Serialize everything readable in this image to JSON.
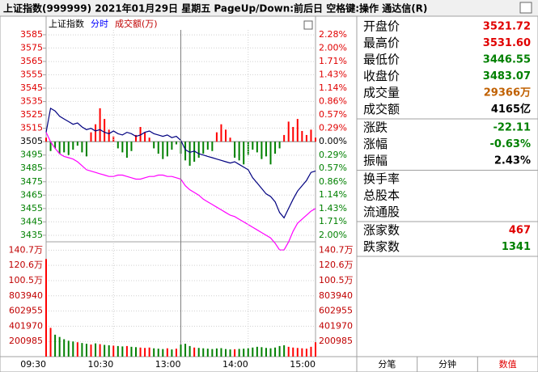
{
  "header": {
    "title": "上证指数(999999)  2021年01月29日 星期五 PageUp/Down:前后日 空格键:操作 通达信(R)"
  },
  "chart_data": [
    {
      "type": "line",
      "legend": [
        {
          "text": "上证指数",
          "color": "#000000"
        },
        {
          "text": "分时",
          "color": "#0000ff"
        },
        {
          "text": "成交额(万)",
          "color": "#c00000"
        }
      ],
      "xlim": [
        0,
        240
      ],
      "x": [
        0,
        4,
        8,
        12,
        16,
        20,
        24,
        28,
        32,
        36,
        40,
        44,
        48,
        52,
        56,
        60,
        64,
        68,
        72,
        76,
        80,
        84,
        88,
        92,
        96,
        100,
        104,
        108,
        112,
        116,
        120,
        124,
        128,
        132,
        136,
        140,
        144,
        148,
        152,
        156,
        160,
        164,
        168,
        172,
        176,
        180,
        184,
        188,
        192,
        196,
        200,
        204,
        208,
        212,
        216,
        220,
        224,
        228,
        232,
        236,
        240
      ],
      "ylim": [
        3430.7,
        3588.6
      ],
      "yticks": [
        3585,
        3575,
        3565,
        3555,
        3545,
        3535,
        3525,
        3515,
        3505,
        3495,
        3485,
        3475,
        3465,
        3455,
        3445,
        3435
      ],
      "y2lim": [
        -2.12,
        2.385
      ],
      "y2ticks": [
        {
          "value": 2.28,
          "label": "2.28%"
        },
        {
          "value": 2.0,
          "label": "2.00%"
        },
        {
          "value": 1.71,
          "label": "1.71%"
        },
        {
          "value": 1.43,
          "label": "1.43%"
        },
        {
          "value": 1.14,
          "label": "1.14%"
        },
        {
          "value": 0.86,
          "label": "0.86%"
        },
        {
          "value": 0.57,
          "label": "0.57%"
        },
        {
          "value": 0.29,
          "label": "0.29%"
        },
        {
          "value": 0,
          "label": "0.00%"
        },
        {
          "value": -0.29,
          "label": "0.29%"
        },
        {
          "value": -0.57,
          "label": "0.57%"
        },
        {
          "value": -0.86,
          "label": "0.86%"
        },
        {
          "value": -1.14,
          "label": "1.14%"
        },
        {
          "value": -1.43,
          "label": "1.43%"
        },
        {
          "value": -1.71,
          "label": "1.71%"
        },
        {
          "value": -2.0,
          "label": "2.00%"
        }
      ],
      "grid": true,
      "up_color": "#ff0000",
      "down_color": "#008000",
      "series": [
        {
          "type": "bar",
          "values": [
            3508,
            3498,
            3500,
            3496,
            3497,
            3495,
            3499,
            3502,
            3497,
            3494,
            3512,
            3518,
            3530,
            3522,
            3514,
            3509,
            3500,
            3497,
            3493,
            3498,
            3510,
            3516,
            3512,
            3508,
            3500,
            3496,
            3492,
            3494,
            3499,
            3503,
            3496,
            3491,
            3487,
            3490,
            3493,
            3496,
            3499,
            3498,
            3512,
            3518,
            3514,
            3508,
            3493,
            3491,
            3488,
            3495,
            3499,
            3497,
            3492,
            3494,
            3488,
            3496,
            3500,
            3510,
            3520,
            3516,
            3522,
            3513,
            3510,
            3514,
            3508
          ]
        },
        {
          "type": "line",
          "color": "#ff00ff",
          "values": [
            3512,
            3505,
            3500,
            3496,
            3494,
            3493,
            3492,
            3490,
            3487,
            3484,
            3483,
            3482,
            3481,
            3480,
            3479,
            3479,
            3480,
            3480,
            3479,
            3478,
            3477,
            3477,
            3478,
            3479,
            3479,
            3480,
            3480,
            3479,
            3479,
            3478,
            3477,
            3472,
            3469,
            3467,
            3465,
            3462,
            3460,
            3458,
            3456,
            3454,
            3452,
            3450,
            3449,
            3447,
            3445,
            3443,
            3441,
            3439,
            3437,
            3435,
            3433,
            3429,
            3424,
            3424,
            3430,
            3438,
            3444,
            3447,
            3450,
            3453,
            3455
          ]
        },
        {
          "type": "line",
          "color": "#000080",
          "values": [
            3512,
            3530,
            3528,
            3524,
            3522,
            3520,
            3518,
            3519,
            3516,
            3514,
            3515,
            3513,
            3514,
            3512,
            3511,
            3513,
            3511,
            3510,
            3512,
            3511,
            3509,
            3510,
            3512,
            3513,
            3511,
            3510,
            3509,
            3510,
            3508,
            3509,
            3506,
            3499,
            3497,
            3498,
            3496,
            3495,
            3494,
            3493,
            3492,
            3491,
            3490,
            3489,
            3490,
            3488,
            3486,
            3484,
            3478,
            3474,
            3470,
            3466,
            3464,
            3460,
            3452,
            3448,
            3455,
            3462,
            3468,
            3472,
            3476,
            3482,
            3483.07
          ]
        }
      ]
    },
    {
      "type": "bar",
      "xlim": [
        0,
        240
      ],
      "xticks": [
        {
          "value": 0,
          "label": "09:30"
        },
        {
          "value": 60,
          "label": "10:30"
        },
        {
          "value": 120,
          "label": "13:00"
        },
        {
          "value": 180,
          "label": "14:00"
        },
        {
          "value": 240,
          "label": "15:00"
        }
      ],
      "x": [
        0,
        4,
        8,
        12,
        16,
        20,
        24,
        28,
        32,
        36,
        40,
        44,
        48,
        52,
        56,
        60,
        64,
        68,
        72,
        76,
        80,
        84,
        88,
        92,
        96,
        100,
        104,
        108,
        112,
        116,
        120,
        124,
        128,
        132,
        136,
        140,
        144,
        148,
        152,
        156,
        160,
        164,
        168,
        172,
        176,
        180,
        184,
        188,
        192,
        196,
        200,
        204,
        208,
        212,
        216,
        220,
        224,
        228,
        232,
        236,
        240
      ],
      "ylim": [
        0,
        1507000
      ],
      "yticks": [
        {
          "value": 1406895,
          "label": "140.7万"
        },
        {
          "value": 1205910,
          "label": "120.6万"
        },
        {
          "value": 1004925,
          "label": "100.5万"
        },
        803940,
        602955,
        401970,
        200985
      ],
      "tick_color": "#c00000",
      "grid": true,
      "up_color": "#ff0000",
      "down_color": "#008000",
      "values": [
        1290000,
        380000,
        290000,
        260000,
        230000,
        210000,
        200000,
        190000,
        180000,
        170000,
        160000,
        175000,
        165000,
        155000,
        150000,
        145000,
        140000,
        135000,
        140000,
        130000,
        125000,
        120000,
        115000,
        120000,
        110000,
        105000,
        100000,
        110000,
        95000,
        105000,
        160000,
        170000,
        140000,
        120000,
        115000,
        110000,
        105000,
        100000,
        108000,
        112000,
        100000,
        95000,
        98000,
        102000,
        105000,
        110000,
        120000,
        130000,
        125000,
        115000,
        110000,
        120000,
        140000,
        150000,
        130000,
        120000,
        115000,
        110000,
        105000,
        130000,
        190000
      ]
    }
  ],
  "panel": {
    "groups": [
      [
        {
          "label": "开盘价",
          "value": "3521.72",
          "color": "#e00000"
        },
        {
          "label": "最高价",
          "value": "3531.60",
          "color": "#e00000"
        },
        {
          "label": "最低价",
          "value": "3446.55",
          "color": "#008000"
        },
        {
          "label": "收盘价",
          "value": "3483.07",
          "color": "#008000"
        },
        {
          "label": "成交量",
          "value": "29366万",
          "color": "#c06000"
        },
        {
          "label": "成交额",
          "value": "4165亿",
          "color": "#000000"
        }
      ],
      [
        {
          "label": "涨跌",
          "value": "-22.11",
          "color": "#008000"
        },
        {
          "label": "涨幅",
          "value": "-0.63%",
          "color": "#008000"
        },
        {
          "label": "振幅",
          "value": "2.43%",
          "color": "#000000"
        }
      ],
      [
        {
          "label": "换手率"
        },
        {
          "label": "总股本"
        },
        {
          "label": "流通股"
        }
      ],
      [
        {
          "label": "涨家数",
          "value": "467",
          "color": "#e00000"
        },
        {
          "label": "跌家数",
          "value": "1341",
          "color": "#008000"
        }
      ]
    ]
  },
  "tabs": [
    {
      "text": "分笔"
    },
    {
      "text": "分钟"
    },
    {
      "text": "数值",
      "active": true
    }
  ]
}
